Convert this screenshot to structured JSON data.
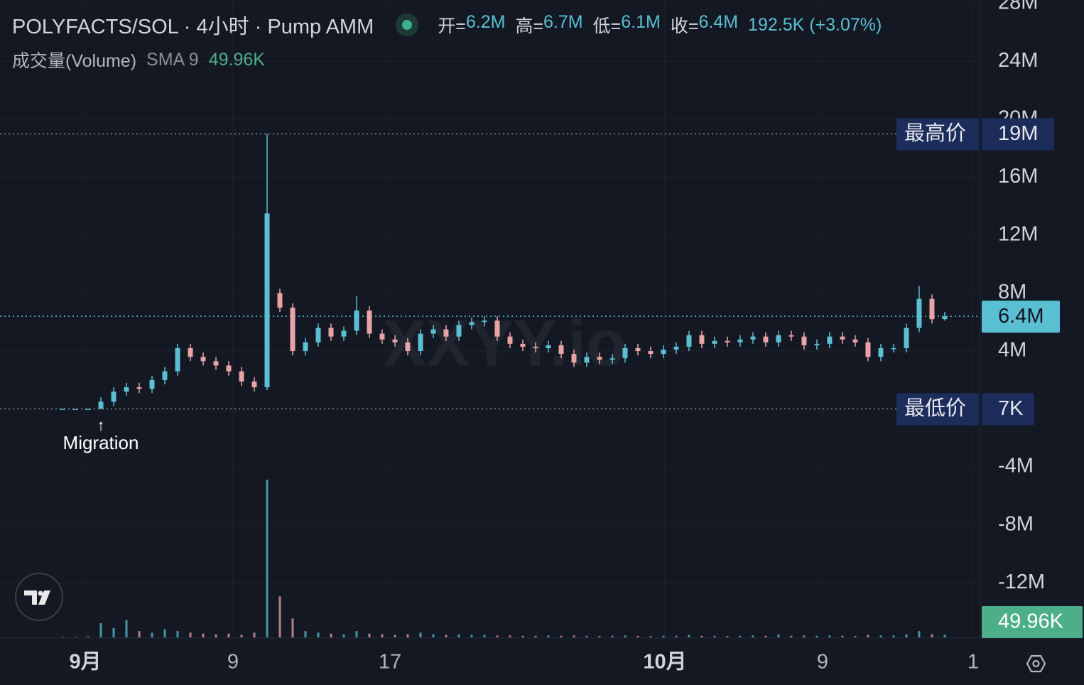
{
  "chart_data": {
    "type": "candlestick",
    "title": "POLYFACTS/SOL · 4小时 · Pump AMM",
    "ohlc_legend": [
      {
        "name": "开=",
        "value": "6.2M"
      },
      {
        "name": "高=",
        "value": "6.7M"
      },
      {
        "name": "低=",
        "value": "6.1M"
      },
      {
        "name": "收=",
        "value": "6.4M"
      }
    ],
    "change": "192.5K (+3.07%)",
    "volume_legend": {
      "name": "成交量(Volume)",
      "indicator": "SMA 9",
      "value": "49.96K"
    },
    "watermark": "XXYY.io",
    "annotation": {
      "arrow": "↑",
      "text": "Migration",
      "x": 3
    },
    "up_color": "#5bbfd3",
    "down_color": "#e9a3a6",
    "grid": true,
    "xlim": [
      -4.89,
      71.78
    ],
    "xticks": [
      {
        "value": 1.78,
        "label": "9月",
        "bold": true
      },
      {
        "value": 13.33,
        "label": "9"
      },
      {
        "value": 25.61,
        "label": "17"
      },
      {
        "value": 47.11,
        "label": "10月",
        "bold": true
      },
      {
        "value": 59.44,
        "label": "9"
      },
      {
        "value": 71.22,
        "label": "1"
      }
    ],
    "ylim": [
      -15820000,
      28240000
    ],
    "yticks": [
      {
        "value": -12000000,
        "label": "-12M"
      },
      {
        "value": -8000000,
        "label": "-8M"
      },
      {
        "value": -4000000,
        "label": "-4M"
      },
      {
        "value": 4000000,
        "label": "4M"
      },
      {
        "value": 8000000,
        "label": "8M"
      },
      {
        "value": 12000000,
        "label": "12M"
      },
      {
        "value": 16000000,
        "label": "16M"
      },
      {
        "value": 20000000,
        "label": "20M"
      },
      {
        "value": 24000000,
        "label": "24M"
      },
      {
        "value": 28000000,
        "label": "28M"
      }
    ],
    "price_lines": [
      {
        "label": "最高价",
        "value": 19000000,
        "value_label": "19M"
      },
      {
        "label": "最低价",
        "value": 7000,
        "value_label": "7K"
      }
    ],
    "last_price": {
      "value": 6400000,
      "value_label": "6.4M"
    },
    "volume_badge": "49.96K",
    "x": [
      0,
      1,
      2,
      3,
      4,
      5,
      6,
      7,
      8,
      9,
      10,
      11,
      12,
      13,
      14,
      15,
      16,
      17,
      18,
      19,
      20,
      21,
      22,
      23,
      24,
      25,
      26,
      27,
      28,
      29,
      30,
      31,
      32,
      33,
      34,
      35,
      36,
      37,
      38,
      39,
      40,
      41,
      42,
      43,
      44,
      45,
      46,
      47,
      48,
      49,
      50,
      51,
      52,
      53,
      54,
      55,
      56,
      57,
      58,
      59,
      60,
      61,
      62,
      63,
      64,
      65,
      66,
      67,
      68,
      69
    ],
    "open": [
      7000,
      7000,
      7000,
      7000,
      500000,
      1200000,
      1500000,
      1400000,
      2000000,
      2600000,
      4200000,
      3600000,
      3300000,
      3000000,
      2600000,
      1900000,
      1500000,
      8000000,
      7000000,
      4000000,
      4600000,
      5600000,
      5000000,
      5400000,
      6800000,
      5200000,
      4800000,
      4600000,
      4000000,
      5200000,
      5500000,
      5000000,
      5800000,
      6000000,
      6100000,
      5000000,
      4500000,
      4300000,
      4200000,
      4400000,
      3800000,
      3200000,
      3600000,
      3400000,
      3500000,
      4200000,
      4000000,
      3800000,
      4100000,
      4300000,
      5100000,
      4500000,
      4700000,
      4600000,
      4800000,
      5000000,
      4600000,
      5100000,
      5000000,
      4400000,
      4500000,
      5000000,
      4800000,
      4600000,
      3600000,
      4200000,
      4200000,
      5600000,
      7600000,
      6200000
    ],
    "high": [
      7000,
      7000,
      7000,
      800000,
      1500000,
      1800000,
      1800000,
      2300000,
      2900000,
      4500000,
      4500000,
      3900000,
      3600000,
      3300000,
      2900000,
      2200000,
      19000000,
      8300000,
      7300000,
      4900000,
      5900000,
      5900000,
      5700000,
      7800000,
      7100000,
      5500000,
      5100000,
      4900000,
      5500000,
      5800000,
      5800000,
      6100000,
      6300000,
      6400000,
      6400000,
      5300000,
      4800000,
      4600000,
      4700000,
      4700000,
      4100000,
      3900000,
      3900000,
      3800000,
      4500000,
      4500000,
      4300000,
      4400000,
      4600000,
      5400000,
      5400000,
      5000000,
      5000000,
      5100000,
      5300000,
      5300000,
      5400000,
      5400000,
      5300000,
      4800000,
      5300000,
      5300000,
      5100000,
      4900000,
      4500000,
      4500000,
      5900000,
      8500000,
      7900000,
      6700000
    ],
    "low": [
      7000,
      7000,
      7000,
      7000,
      200000,
      900000,
      1100000,
      1100000,
      1700000,
      2300000,
      3300000,
      3000000,
      2700000,
      2300000,
      1600000,
      1200000,
      1300000,
      6700000,
      3700000,
      3700000,
      4300000,
      4700000,
      4700000,
      5100000,
      4900000,
      4500000,
      4300000,
      3700000,
      3700000,
      4900000,
      4700000,
      4700000,
      5500000,
      5700000,
      4700000,
      4200000,
      4000000,
      3900000,
      3900000,
      3500000,
      2900000,
      2900000,
      3100000,
      3100000,
      3200000,
      3700000,
      3500000,
      3500000,
      3800000,
      4000000,
      4200000,
      4200000,
      4300000,
      4300000,
      4500000,
      4300000,
      4300000,
      4700000,
      4100000,
      4100000,
      4200000,
      4500000,
      4300000,
      3300000,
      3300000,
      3900000,
      3900000,
      5300000,
      5900000,
      6100000
    ],
    "close": [
      7000,
      7000,
      7000,
      500000,
      1200000,
      1500000,
      1400000,
      2000000,
      2600000,
      4200000,
      3600000,
      3300000,
      3000000,
      2600000,
      1900000,
      1500000,
      13500000,
      7000000,
      4000000,
      4600000,
      5600000,
      5000000,
      5400000,
      6800000,
      5200000,
      4800000,
      4600000,
      4000000,
      5200000,
      5500000,
      5000000,
      5800000,
      6000000,
      6100000,
      5000000,
      4500000,
      4300000,
      4200000,
      4400000,
      3800000,
      3200000,
      3600000,
      3400000,
      3500000,
      4200000,
      4000000,
      3800000,
      4100000,
      4300000,
      5100000,
      4500000,
      4700000,
      4600000,
      4800000,
      5000000,
      4600000,
      5100000,
      5000000,
      4400000,
      4500000,
      5000000,
      4800000,
      4600000,
      3600000,
      4200000,
      4200000,
      5600000,
      7600000,
      6200000,
      6400000
    ],
    "volume": [
      2000,
      2000,
      3000,
      45000,
      30000,
      55000,
      20000,
      15000,
      25000,
      20000,
      15000,
      12000,
      10000,
      12000,
      8000,
      15000,
      500000,
      130000,
      60000,
      20000,
      15000,
      12000,
      10000,
      20000,
      12000,
      10000,
      8000,
      10000,
      15000,
      10000,
      8000,
      10000,
      8000,
      8000,
      6000,
      6000,
      5000,
      5000,
      6000,
      5000,
      6000,
      5000,
      4000,
      5000,
      6000,
      5000,
      4000,
      5000,
      5000,
      8000,
      5000,
      5000,
      4000,
      5000,
      6000,
      5000,
      10000,
      5000,
      6000,
      5000,
      6000,
      5000,
      4000,
      8000,
      6000,
      6000,
      10000,
      20000,
      10000,
      8000
    ]
  }
}
